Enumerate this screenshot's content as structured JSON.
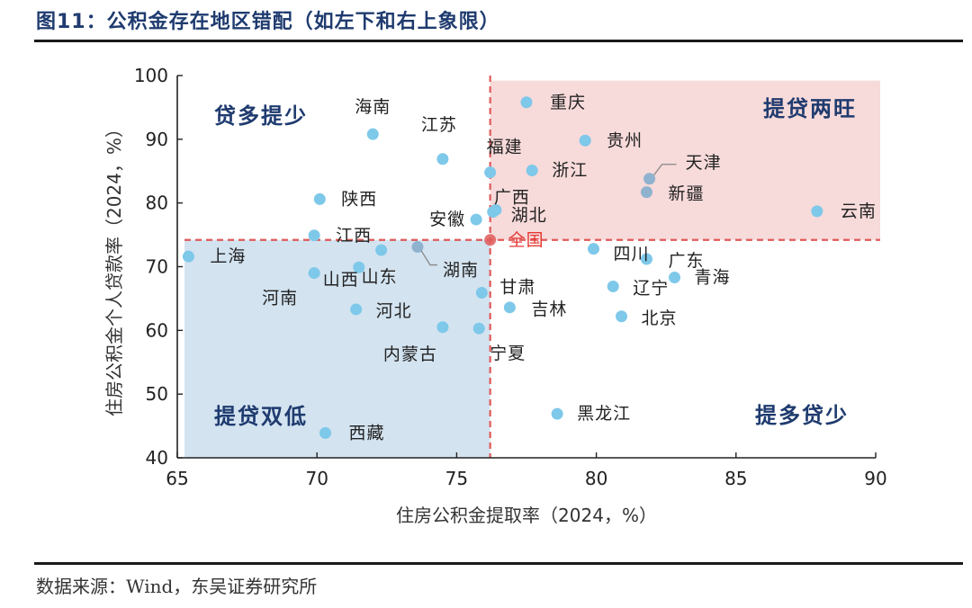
{
  "figure": {
    "title": "图11：公积金存在地区错配（如左下和右上象限）",
    "source": "数据来源：Wind，东吴证券研究所"
  },
  "colors": {
    "title": "#1f3b6f",
    "point": "#7ec8ea",
    "point_dark": "#8fb2cf",
    "quadrant_low": "#d3e3f0",
    "quadrant_high": "#f7dada",
    "threshold": "#e05a5a",
    "quadrant_label": "#1f3b6f",
    "national": "#e53935"
  },
  "chart_data": {
    "type": "scatter",
    "title": "公积金存在地区错配（如左下和右上象限）",
    "xlabel": "住房公积金提取率（2024，%）",
    "ylabel": "住房公积金个人贷款率（2024，%）",
    "xlim": [
      65,
      90
    ],
    "ylim": [
      40,
      100
    ],
    "xticks": [
      65,
      70,
      75,
      80,
      85,
      90
    ],
    "yticks": [
      40,
      50,
      60,
      70,
      80,
      90,
      100
    ],
    "grid": false,
    "thresholds": {
      "x": 76.2,
      "y": 74.2
    },
    "quadrant_labels": [
      {
        "text": "贷多提少",
        "position": "top-left"
      },
      {
        "text": "提贷两旺",
        "position": "top-right"
      },
      {
        "text": "提贷双低",
        "position": "bottom-left"
      },
      {
        "text": "提多贷少",
        "position": "bottom-right"
      }
    ],
    "national": {
      "name": "全国",
      "x": 76.2,
      "y": 74.2
    },
    "points": [
      {
        "name": "重庆",
        "x": 77.5,
        "y": 95.8
      },
      {
        "name": "海南",
        "x": 72.0,
        "y": 90.8
      },
      {
        "name": "贵州",
        "x": 79.6,
        "y": 89.8
      },
      {
        "name": "江苏",
        "x": 74.5,
        "y": 86.9
      },
      {
        "name": "福建",
        "x": 76.2,
        "y": 84.8
      },
      {
        "name": "浙江",
        "x": 77.7,
        "y": 85.1
      },
      {
        "name": "天津",
        "x": 81.9,
        "y": 83.8
      },
      {
        "name": "新疆",
        "x": 81.8,
        "y": 81.7
      },
      {
        "name": "陕西",
        "x": 70.1,
        "y": 80.6
      },
      {
        "name": "广西",
        "x": 76.4,
        "y": 78.9
      },
      {
        "name": "湖北",
        "x": 76.3,
        "y": 78.6
      },
      {
        "name": "云南",
        "x": 87.9,
        "y": 78.7
      },
      {
        "name": "安徽",
        "x": 75.7,
        "y": 77.4
      },
      {
        "name": "江西",
        "x": 69.9,
        "y": 74.9
      },
      {
        "name": "湖南",
        "x": 73.6,
        "y": 73.1
      },
      {
        "name": "山东",
        "x": 72.3,
        "y": 72.6
      },
      {
        "name": "四川",
        "x": 79.9,
        "y": 72.8
      },
      {
        "name": "上海",
        "x": 65.4,
        "y": 71.6
      },
      {
        "name": "广东",
        "x": 81.8,
        "y": 71.2
      },
      {
        "name": "山西",
        "x": 71.5,
        "y": 69.9
      },
      {
        "name": "河南",
        "x": 69.9,
        "y": 69.0
      },
      {
        "name": "青海",
        "x": 82.8,
        "y": 68.3
      },
      {
        "name": "辽宁",
        "x": 80.6,
        "y": 66.9
      },
      {
        "name": "甘肃",
        "x": 75.9,
        "y": 65.9
      },
      {
        "name": "河北",
        "x": 71.4,
        "y": 63.3
      },
      {
        "name": "吉林",
        "x": 76.9,
        "y": 63.6
      },
      {
        "name": "北京",
        "x": 80.9,
        "y": 62.2
      },
      {
        "name": "内蒙古",
        "x": 74.5,
        "y": 60.5
      },
      {
        "name": "宁夏",
        "x": 75.8,
        "y": 60.3
      },
      {
        "name": "黑龙江",
        "x": 78.6,
        "y": 46.9
      },
      {
        "name": "西藏",
        "x": 70.3,
        "y": 43.9
      }
    ]
  }
}
